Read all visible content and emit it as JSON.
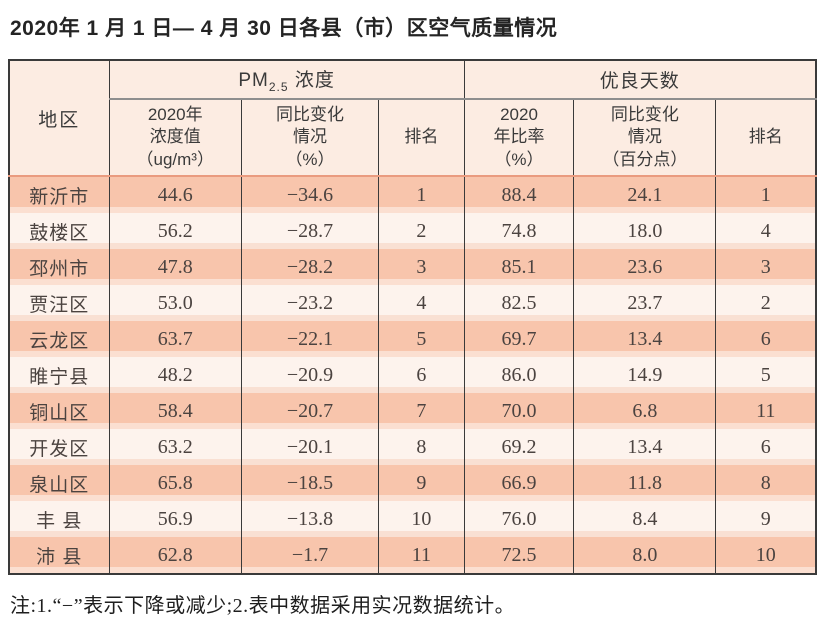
{
  "page": {
    "title": "2020年 1 月 1 日— 4 月 30 日各县（市）区空气质量情况",
    "note": "注:1.“−”表示下降或减少;2.表中数据采用实况数据统计。"
  },
  "table": {
    "header": {
      "region": "地区",
      "pm_group": {
        "prefix": "PM",
        "sub": "2.5",
        "suffix": " 浓度"
      },
      "days_group": "优良天数",
      "sub_headers": {
        "pm_value": "2020年\n浓度值\n（ug/m³）",
        "pm_change": "同比变化\n情况\n（%）",
        "pm_rank": "排名",
        "days_ratio": "2020\n年比率\n（%）",
        "days_change": "同比变化\n情况\n（百分点）",
        "days_rank": "排名"
      }
    },
    "rows": [
      {
        "region": "新沂市",
        "pm_value": "44.6",
        "pm_change": "−34.6",
        "pm_rank": "1",
        "days_ratio": "88.4",
        "days_change": "24.1",
        "days_rank": "1"
      },
      {
        "region": "鼓楼区",
        "pm_value": "56.2",
        "pm_change": "−28.7",
        "pm_rank": "2",
        "days_ratio": "74.8",
        "days_change": "18.0",
        "days_rank": "4"
      },
      {
        "region": "邳州市",
        "pm_value": "47.8",
        "pm_change": "−28.2",
        "pm_rank": "3",
        "days_ratio": "85.1",
        "days_change": "23.6",
        "days_rank": "3"
      },
      {
        "region": "贾汪区",
        "pm_value": "53.0",
        "pm_change": "−23.2",
        "pm_rank": "4",
        "days_ratio": "82.5",
        "days_change": "23.7",
        "days_rank": "2"
      },
      {
        "region": "云龙区",
        "pm_value": "63.7",
        "pm_change": "−22.1",
        "pm_rank": "5",
        "days_ratio": "69.7",
        "days_change": "13.4",
        "days_rank": "6"
      },
      {
        "region": "睢宁县",
        "pm_value": "48.2",
        "pm_change": "−20.9",
        "pm_rank": "6",
        "days_ratio": "86.0",
        "days_change": "14.9",
        "days_rank": "5"
      },
      {
        "region": "铜山区",
        "pm_value": "58.4",
        "pm_change": "−20.7",
        "pm_rank": "7",
        "days_ratio": "70.0",
        "days_change": "6.8",
        "days_rank": "11"
      },
      {
        "region": "开发区",
        "pm_value": "63.2",
        "pm_change": "−20.1",
        "pm_rank": "8",
        "days_ratio": "69.2",
        "days_change": "13.4",
        "days_rank": "6"
      },
      {
        "region": "泉山区",
        "pm_value": "65.8",
        "pm_change": "−18.5",
        "pm_rank": "9",
        "days_ratio": "66.9",
        "days_change": "11.8",
        "days_rank": "8"
      },
      {
        "region": "丰 县",
        "pm_value": "56.9",
        "pm_change": "−13.8",
        "pm_rank": "10",
        "days_ratio": "76.0",
        "days_change": "8.4",
        "days_rank": "9"
      },
      {
        "region": "沛 县",
        "pm_value": "62.8",
        "pm_change": "−1.7",
        "pm_rank": "11",
        "days_ratio": "72.5",
        "days_change": "8.0",
        "days_rank": "10"
      }
    ]
  },
  "colors": {
    "row_odd": "#f8c5ac",
    "row_odd_strip": "#fbdfd1",
    "row_even": "#fdf3ed",
    "row_even_strip": "#f9e0d3",
    "header_bg": "#fcece2",
    "border_dark": "#3a3a3a",
    "group_underline": "#8e8e8e",
    "header_body_divider": "#ea9b7f"
  }
}
